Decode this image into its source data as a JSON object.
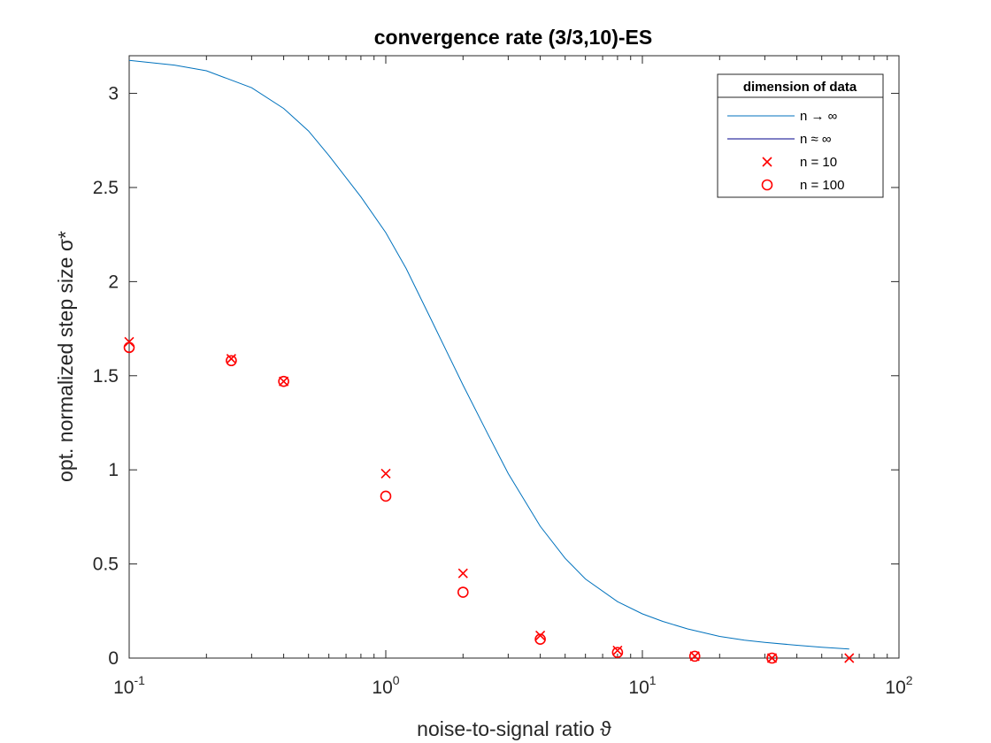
{
  "chart_data": {
    "type": "line",
    "title": "convergence rate (3/3,10)-ES",
    "xlabel": "noise-to-signal ratio ϑ",
    "ylabel": "opt. normalized step size σ*",
    "x_scale": "log",
    "xlim": [
      0.1,
      100
    ],
    "ylim": [
      0,
      3.2
    ],
    "x_ticks": [
      {
        "base": "10",
        "exp": "-1"
      },
      {
        "base": "10",
        "exp": "0"
      },
      {
        "base": "10",
        "exp": "1"
      },
      {
        "base": "10",
        "exp": "2"
      }
    ],
    "y_ticks": [
      "0",
      "0.5",
      "1",
      "1.5",
      "2",
      "2.5",
      "3"
    ],
    "grid": false,
    "legend": {
      "title": "dimension of data",
      "placement": "top-right",
      "entries": [
        "n → ∞",
        "n ≈ ∞",
        "n = 10",
        "n = 100"
      ]
    },
    "series": [
      {
        "name": "n → ∞",
        "kind": "line",
        "color": "#0072bd",
        "x": [
          0.1,
          0.15,
          0.2,
          0.3,
          0.4,
          0.5,
          0.6,
          0.8,
          1.0,
          1.2,
          1.5,
          2.0,
          2.5,
          3.0,
          4.0,
          5.0,
          6.0,
          8.0,
          10,
          12,
          15,
          20,
          25,
          30,
          40,
          50,
          64
        ],
        "y": [
          3.175,
          3.15,
          3.12,
          3.03,
          2.92,
          2.8,
          2.67,
          2.45,
          2.26,
          2.07,
          1.8,
          1.45,
          1.19,
          0.98,
          0.7,
          0.53,
          0.42,
          0.3,
          0.235,
          0.195,
          0.155,
          0.115,
          0.095,
          0.083,
          0.068,
          0.058,
          0.048
        ]
      },
      {
        "name": "n ≈ ∞",
        "kind": "line",
        "color": "#00008b",
        "x": [],
        "y": []
      },
      {
        "name": "n = 10",
        "kind": "marker",
        "marker": "x",
        "color": "#ff0000",
        "x": [
          0.1,
          0.25,
          0.4,
          1,
          2,
          4,
          8,
          16,
          32,
          64
        ],
        "y": [
          1.68,
          1.59,
          1.47,
          0.98,
          0.45,
          0.12,
          0.04,
          0.01,
          0.0,
          0.0
        ]
      },
      {
        "name": "n = 100",
        "kind": "marker",
        "marker": "o",
        "color": "#ff0000",
        "x": [
          0.1,
          0.25,
          0.4,
          1,
          2,
          4,
          8,
          16,
          32
        ],
        "y": [
          1.65,
          1.58,
          1.47,
          0.86,
          0.35,
          0.1,
          0.03,
          0.01,
          0.0
        ]
      }
    ]
  }
}
